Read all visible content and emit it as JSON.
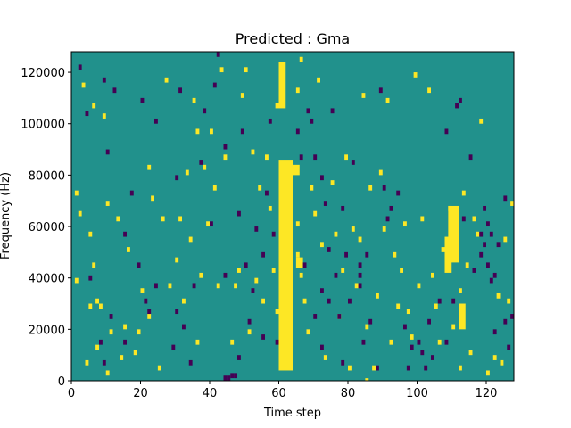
{
  "chart_data": {
    "type": "heatmap",
    "title": "Predicted : Gma",
    "xlabel": "Time step",
    "ylabel": "Frequency (Hz)",
    "xlim": [
      0,
      128
    ],
    "ylim": [
      0,
      128000
    ],
    "x_ticks": [
      0,
      20,
      40,
      60,
      80,
      100,
      120
    ],
    "y_ticks": [
      0,
      20000,
      40000,
      60000,
      80000,
      100000,
      120000
    ],
    "n_time_steps": 128,
    "n_freq_bins": 128,
    "levels": {
      "low": -1,
      "background": 0,
      "high": 1
    },
    "colors": {
      "low": "#440154",
      "background": "#21918c",
      "high": "#fde725"
    },
    "high_band": {
      "x_range": [
        60,
        64
      ],
      "y_range": [
        4000,
        86000
      ]
    },
    "low_cells": [
      [
        2,
        121000
      ],
      [
        4,
        103000
      ],
      [
        5,
        39000
      ],
      [
        8,
        14000
      ],
      [
        9,
        6000
      ],
      [
        9,
        116000
      ],
      [
        10,
        88000
      ],
      [
        11,
        24000
      ],
      [
        12,
        112000
      ],
      [
        15,
        56000
      ],
      [
        15,
        14000
      ],
      [
        17,
        72000
      ],
      [
        19,
        44000
      ],
      [
        20,
        108000
      ],
      [
        21,
        30000
      ],
      [
        22,
        26000
      ],
      [
        24,
        100000
      ],
      [
        24,
        36000
      ],
      [
        29,
        12000
      ],
      [
        30,
        78000
      ],
      [
        30,
        26000
      ],
      [
        31,
        112000
      ],
      [
        32,
        20000
      ],
      [
        34,
        6000
      ],
      [
        35,
        36000
      ],
      [
        37,
        84000
      ],
      [
        38,
        104000
      ],
      [
        40,
        60000
      ],
      [
        41,
        114000
      ],
      [
        42,
        126000
      ],
      [
        44,
        90000
      ],
      [
        44,
        40000
      ],
      [
        44,
        0
      ],
      [
        45,
        0
      ],
      [
        46,
        1000
      ],
      [
        47,
        1000
      ],
      [
        48,
        8000
      ],
      [
        48,
        64000
      ],
      [
        49,
        96000
      ],
      [
        50,
        44000
      ],
      [
        51,
        22000
      ],
      [
        52,
        34000
      ],
      [
        53,
        58000
      ],
      [
        55,
        48000
      ],
      [
        55,
        16000
      ],
      [
        56,
        72000
      ],
      [
        57,
        100000
      ],
      [
        58,
        56000
      ],
      [
        59,
        14000
      ],
      [
        65,
        96000
      ],
      [
        66,
        86000
      ],
      [
        67,
        44000
      ],
      [
        68,
        104000
      ],
      [
        69,
        100000
      ],
      [
        70,
        86000
      ],
      [
        70,
        24000
      ],
      [
        72,
        78000
      ],
      [
        72,
        34000
      ],
      [
        72,
        12000
      ],
      [
        73,
        68000
      ],
      [
        74,
        50000
      ],
      [
        74,
        30000
      ],
      [
        75,
        104000
      ],
      [
        76,
        40000
      ],
      [
        77,
        24000
      ],
      [
        78,
        66000
      ],
      [
        78,
        6000
      ],
      [
        79,
        48000
      ],
      [
        80,
        30000
      ],
      [
        81,
        84000
      ],
      [
        83,
        44000
      ],
      [
        83,
        40000
      ],
      [
        83,
        36000
      ],
      [
        84,
        14000
      ],
      [
        85,
        48000
      ],
      [
        86,
        22000
      ],
      [
        88,
        4000
      ],
      [
        89,
        112000
      ],
      [
        90,
        74000
      ],
      [
        91,
        62000
      ],
      [
        92,
        66000
      ],
      [
        94,
        72000
      ],
      [
        96,
        20000
      ],
      [
        97,
        4000
      ],
      [
        98,
        12000
      ],
      [
        100,
        14000
      ],
      [
        101,
        10000
      ],
      [
        102,
        4000
      ],
      [
        103,
        22000
      ],
      [
        104,
        8000
      ],
      [
        106,
        30000
      ],
      [
        108,
        96000
      ],
      [
        108,
        14000
      ],
      [
        110,
        30000
      ],
      [
        111,
        106000
      ],
      [
        112,
        108000
      ],
      [
        113,
        62000
      ],
      [
        115,
        86000
      ],
      [
        116,
        42000
      ],
      [
        118,
        56000
      ],
      [
        118,
        48000
      ],
      [
        119,
        66000
      ],
      [
        119,
        52000
      ],
      [
        120,
        60000
      ],
      [
        120,
        44000
      ],
      [
        121,
        56000
      ],
      [
        121,
        38000
      ],
      [
        122,
        40000
      ],
      [
        122,
        18000
      ],
      [
        123,
        52000
      ],
      [
        125,
        70000
      ],
      [
        125,
        22000
      ],
      [
        126,
        12000
      ],
      [
        127,
        24000
      ]
    ],
    "high_cells": [
      [
        1,
        72000
      ],
      [
        1,
        38000
      ],
      [
        2,
        64000
      ],
      [
        3,
        114000
      ],
      [
        4,
        6000
      ],
      [
        5,
        28000
      ],
      [
        5,
        56000
      ],
      [
        6,
        44000
      ],
      [
        6,
        106000
      ],
      [
        7,
        30000
      ],
      [
        7,
        12000
      ],
      [
        8,
        28000
      ],
      [
        9,
        102000
      ],
      [
        10,
        68000
      ],
      [
        10,
        2000
      ],
      [
        11,
        18000
      ],
      [
        13,
        62000
      ],
      [
        14,
        8000
      ],
      [
        15,
        20000
      ],
      [
        16,
        50000
      ],
      [
        18,
        10000
      ],
      [
        19,
        18000
      ],
      [
        20,
        34000
      ],
      [
        22,
        82000
      ],
      [
        22,
        24000
      ],
      [
        23,
        70000
      ],
      [
        25,
        4000
      ],
      [
        26,
        62000
      ],
      [
        27,
        116000
      ],
      [
        28,
        36000
      ],
      [
        30,
        46000
      ],
      [
        31,
        62000
      ],
      [
        32,
        30000
      ],
      [
        33,
        80000
      ],
      [
        34,
        54000
      ],
      [
        35,
        108000
      ],
      [
        36,
        96000
      ],
      [
        36,
        14000
      ],
      [
        37,
        40000
      ],
      [
        38,
        82000
      ],
      [
        39,
        60000
      ],
      [
        40,
        96000
      ],
      [
        41,
        74000
      ],
      [
        42,
        36000
      ],
      [
        43,
        120000
      ],
      [
        44,
        86000
      ],
      [
        46,
        14000
      ],
      [
        47,
        36000
      ],
      [
        48,
        42000
      ],
      [
        49,
        110000
      ],
      [
        50,
        120000
      ],
      [
        51,
        18000
      ],
      [
        52,
        88000
      ],
      [
        53,
        38000
      ],
      [
        54,
        74000
      ],
      [
        55,
        30000
      ],
      [
        56,
        86000
      ],
      [
        57,
        66000
      ],
      [
        58,
        42000
      ],
      [
        59,
        26000
      ],
      [
        59,
        106000
      ],
      [
        65,
        60000
      ],
      [
        65,
        48000
      ],
      [
        65,
        112000
      ],
      [
        66,
        40000
      ],
      [
        66,
        124000
      ],
      [
        67,
        30000
      ],
      [
        68,
        18000
      ],
      [
        69,
        74000
      ],
      [
        70,
        64000
      ],
      [
        71,
        116000
      ],
      [
        72,
        52000
      ],
      [
        73,
        8000
      ],
      [
        75,
        76000
      ],
      [
        76,
        56000
      ],
      [
        77,
        24000
      ],
      [
        78,
        42000
      ],
      [
        79,
        86000
      ],
      [
        80,
        4000
      ],
      [
        81,
        58000
      ],
      [
        82,
        36000
      ],
      [
        83,
        54000
      ],
      [
        84,
        110000
      ],
      [
        85,
        20000
      ],
      [
        86,
        74000
      ],
      [
        87,
        4000
      ],
      [
        88,
        32000
      ],
      [
        89,
        80000
      ],
      [
        90,
        58000
      ],
      [
        91,
        108000
      ],
      [
        92,
        14000
      ],
      [
        93,
        48000
      ],
      [
        94,
        28000
      ],
      [
        95,
        42000
      ],
      [
        96,
        60000
      ],
      [
        97,
        26000
      ],
      [
        98,
        16000
      ],
      [
        99,
        118000
      ],
      [
        100,
        36000
      ],
      [
        101,
        62000
      ],
      [
        103,
        112000
      ],
      [
        104,
        40000
      ],
      [
        105,
        28000
      ],
      [
        106,
        14000
      ],
      [
        107,
        50000
      ],
      [
        109,
        66000
      ],
      [
        110,
        20000
      ],
      [
        112,
        34000
      ],
      [
        112,
        4000
      ],
      [
        113,
        72000
      ],
      [
        114,
        44000
      ],
      [
        115,
        10000
      ],
      [
        116,
        62000
      ],
      [
        117,
        56000
      ],
      [
        118,
        100000
      ],
      [
        120,
        2000
      ],
      [
        122,
        8000
      ],
      [
        123,
        32000
      ],
      [
        124,
        6000
      ],
      [
        125,
        54000
      ],
      [
        126,
        30000
      ],
      [
        127,
        68000
      ]
    ],
    "high_blocks": [
      [
        64,
        66,
        84000,
        80000
      ],
      [
        65,
        67,
        48000,
        44000
      ],
      [
        85,
        86,
        1000,
        0
      ],
      [
        109,
        112,
        68000,
        46000
      ],
      [
        112,
        114,
        30000,
        20000
      ],
      [
        108,
        110,
        56000,
        42000
      ],
      [
        60,
        62,
        124000,
        106000
      ]
    ]
  }
}
